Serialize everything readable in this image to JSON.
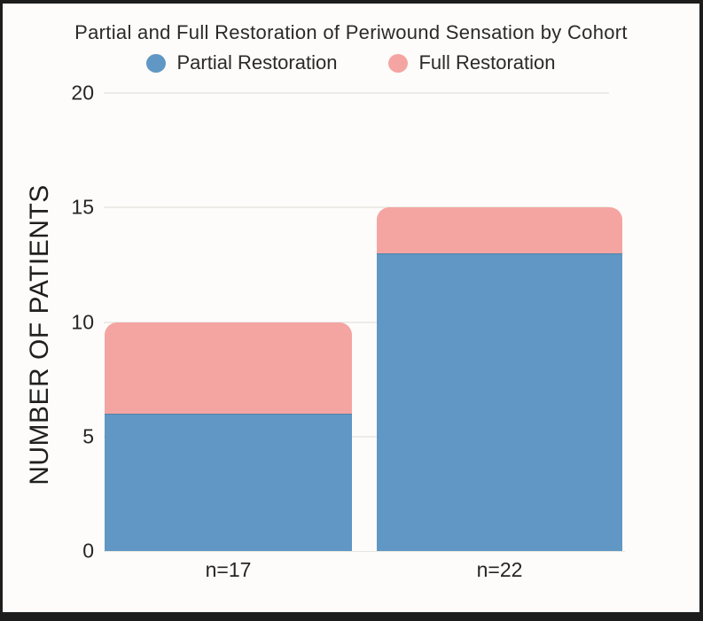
{
  "chart_data": {
    "type": "bar",
    "stacked": true,
    "title": "Partial and Full Restoration of Periwound Sensation by Cohort",
    "categories": [
      "n=17",
      "n=22"
    ],
    "series": [
      {
        "name": "Partial Restoration",
        "color": "#6097c4",
        "values": [
          6,
          13
        ]
      },
      {
        "name": "Full Restoration",
        "color": "#f4a5a2",
        "values": [
          4,
          2
        ]
      }
    ],
    "stack_totals": [
      10,
      15
    ],
    "xlabel": "",
    "ylabel": "NUMBER OF PATIENTS",
    "ylim": [
      0,
      20
    ],
    "yticks": [
      0,
      5,
      10,
      15,
      20
    ],
    "grid": true,
    "legend_position": "top"
  },
  "colors": {
    "background": "#fdfcfa",
    "frame": "#1d1d1d",
    "text": "#2a2a2a",
    "gridline": "#edebe7",
    "partial_blue": "#6097c4",
    "full_pink": "#f4a5a2"
  }
}
